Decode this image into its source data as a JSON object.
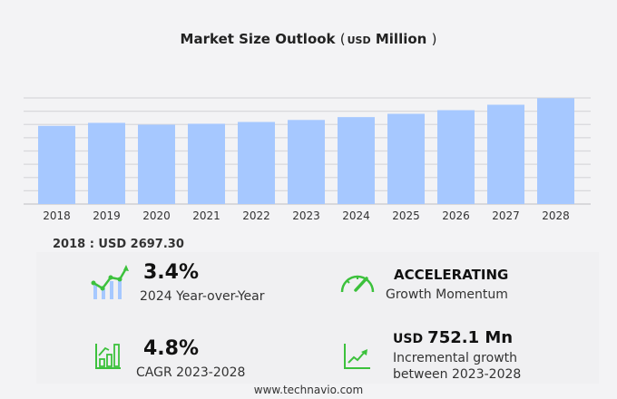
{
  "chart_data": {
    "type": "bar",
    "title": "Market Size Outlook",
    "unit": "USD",
    "unit_suffix": "Million",
    "categories": [
      "2018",
      "2019",
      "2020",
      "2021",
      "2022",
      "2023",
      "2024",
      "2025",
      "2026",
      "2027",
      "2028"
    ],
    "values": [
      2697.3,
      2800,
      2738,
      2769,
      2831,
      2900,
      2999,
      3113,
      3238,
      3425,
      3652
    ],
    "ylim": [
      0,
      3660
    ],
    "grid": true,
    "bar_color": "#a6c8ff"
  },
  "base_year_label": "2018 : USD  2697.30",
  "stats": {
    "yoy": {
      "value": "3.4%",
      "label": "2024 Year-over-Year"
    },
    "momentum": {
      "value": "ACCELERATING",
      "label": "Growth Momentum"
    },
    "cagr": {
      "value": "4.8%",
      "label": "CAGR 2023-2028"
    },
    "incremental": {
      "unit": "USD",
      "value": "752.1 Mn",
      "label1": "Incremental growth",
      "label2": "between 2023-2028"
    }
  },
  "accent_color": "#3cc13c",
  "footer": "www.technavio.com"
}
